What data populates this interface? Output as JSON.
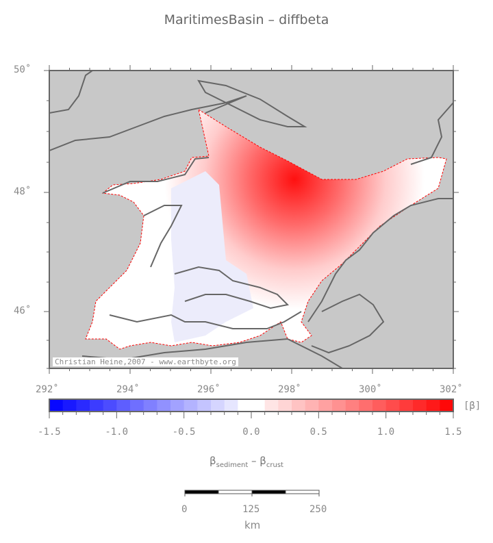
{
  "title": "MaritimesBasin – diffbeta",
  "map": {
    "lon_ticks": [
      "292˚",
      "294˚",
      "296˚",
      "298˚",
      "300˚",
      "302˚"
    ],
    "lat_ticks": [
      "50˚",
      "48˚",
      "46˚"
    ],
    "credit": "Christian Heine,2007 - www.earthbyte.org",
    "colors": {
      "land": "#c8c8c8",
      "coast": "#666666",
      "basin_outline": "#ff0000",
      "max": "#ff0000",
      "min": "#0000ff"
    }
  },
  "colorbar": {
    "unit": "[β]",
    "range": [
      -1.5,
      1.5
    ],
    "step": 0.1,
    "tick_labels": [
      "-1.5",
      "-1.0",
      "-0.5",
      "0.0",
      "0.5",
      "1.0",
      "1.5"
    ],
    "label_main": "β",
    "label_sub1": "sediment",
    "label_dash": " – ",
    "label_sub2": "crust"
  },
  "scalebar": {
    "labels": [
      "0",
      "125",
      "250"
    ],
    "unit": "km"
  }
}
